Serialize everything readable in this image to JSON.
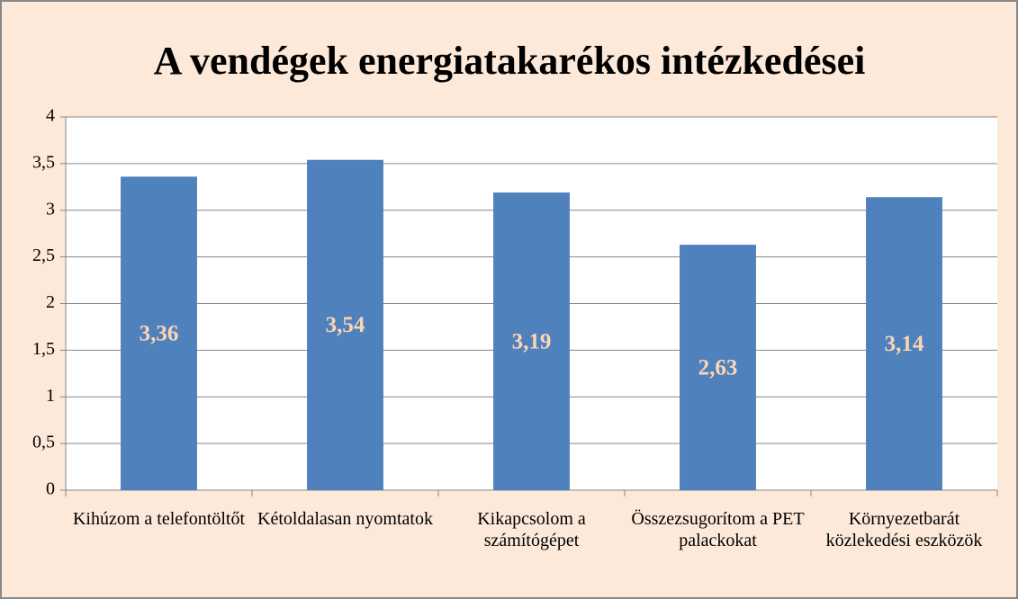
{
  "chart_data": {
    "type": "bar",
    "title": "A vendégek energiatakarékos intézkedései",
    "categories": [
      "Kihúzom a telefontöltőt",
      "Kétoldalasan nyomtatok",
      "Kikapcsolom a számítógépet",
      "Összezsugorítom a PET palackokat",
      "Környezetbarát közlekedési eszközök"
    ],
    "values": [
      3.36,
      3.54,
      3.19,
      2.63,
      3.14
    ],
    "value_labels": [
      "3,36",
      "3,54",
      "3,19",
      "2,63",
      "3,14"
    ],
    "color": "#4f81bd",
    "ylim": [
      0,
      4
    ],
    "yticks": [
      0,
      {
        "value": 0.5,
        "label": "0,5"
      },
      1,
      {
        "value": 1.5,
        "label": "1,5"
      },
      2,
      {
        "value": 2.5,
        "label": "2,5"
      },
      3,
      {
        "value": 3.5,
        "label": "3,5"
      },
      4
    ],
    "grid": true
  }
}
